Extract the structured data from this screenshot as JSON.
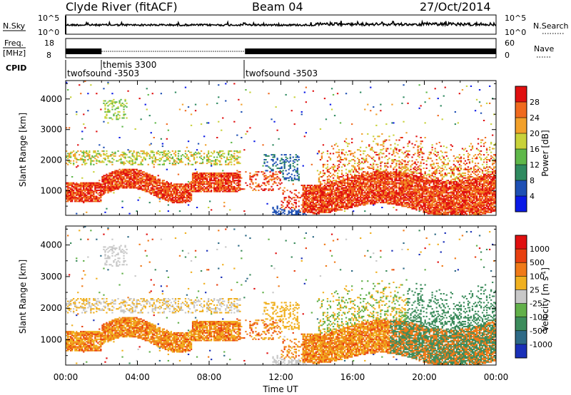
{
  "header": {
    "station": "Clyde River (fitACF)",
    "beam": "Beam 04",
    "date": "27/Oct/2014"
  },
  "noise_panel": {
    "left_label": "N.Sky",
    "right_label": "N.Search",
    "left_ticks": [
      "10^5",
      "10^0"
    ],
    "right_ticks": [
      "10^5",
      "10^0"
    ]
  },
  "freq_panel": {
    "left_label_top": "Freq.",
    "left_label_bottom": "[MHz]",
    "right_label": "Nave",
    "left_ticks": [
      "18",
      "8"
    ],
    "right_ticks": [
      "60",
      "0"
    ]
  },
  "cpid": {
    "label": "CPID",
    "segments": [
      {
        "name": "twofsound -3503",
        "start_hour": 0
      },
      {
        "name": "themis 3300",
        "start_hour": 2
      },
      {
        "name": "twofsound -3503",
        "start_hour": 10
      }
    ]
  },
  "chart_data": [
    {
      "type": "heatmap",
      "title": "",
      "ylabel": "Slant Range [km]",
      "xlim": [
        0,
        24
      ],
      "ylim": [
        200,
        4600
      ],
      "yticks": [
        "1000",
        "2000",
        "3000",
        "4000"
      ],
      "colorbar": {
        "label": "Power [dB]",
        "ticks": [
          "4",
          "8",
          "12",
          "16",
          "20",
          "24",
          "28"
        ],
        "colors": [
          "#0a1ae6",
          "#1e50b4",
          "#2f8a60",
          "#5fb84a",
          "#c8d23a",
          "#f2a02a",
          "#f06a1e",
          "#e01010"
        ]
      }
    },
    {
      "type": "heatmap",
      "title": "",
      "ylabel": "Slant Range [km]",
      "xlabel": "Time UT",
      "xlim": [
        0,
        24
      ],
      "ylim": [
        200,
        4600
      ],
      "xticks": [
        "00:00",
        "04:00",
        "08:00",
        "12:00",
        "16:00",
        "20:00",
        "00:00"
      ],
      "yticks": [
        "1000",
        "2000",
        "3000",
        "4000"
      ],
      "colorbar": {
        "label": "Velocity [m s^-1]",
        "ticks": [
          "1000",
          "500",
          "100",
          "25",
          "-25",
          "-100",
          "-500",
          "-1000"
        ],
        "colors": [
          "#1a30b8",
          "#2e6a86",
          "#3c8c5c",
          "#62b04a",
          "#c8c8c8",
          "#f0b020",
          "#f07a18",
          "#e84010",
          "#e01010"
        ]
      }
    }
  ]
}
